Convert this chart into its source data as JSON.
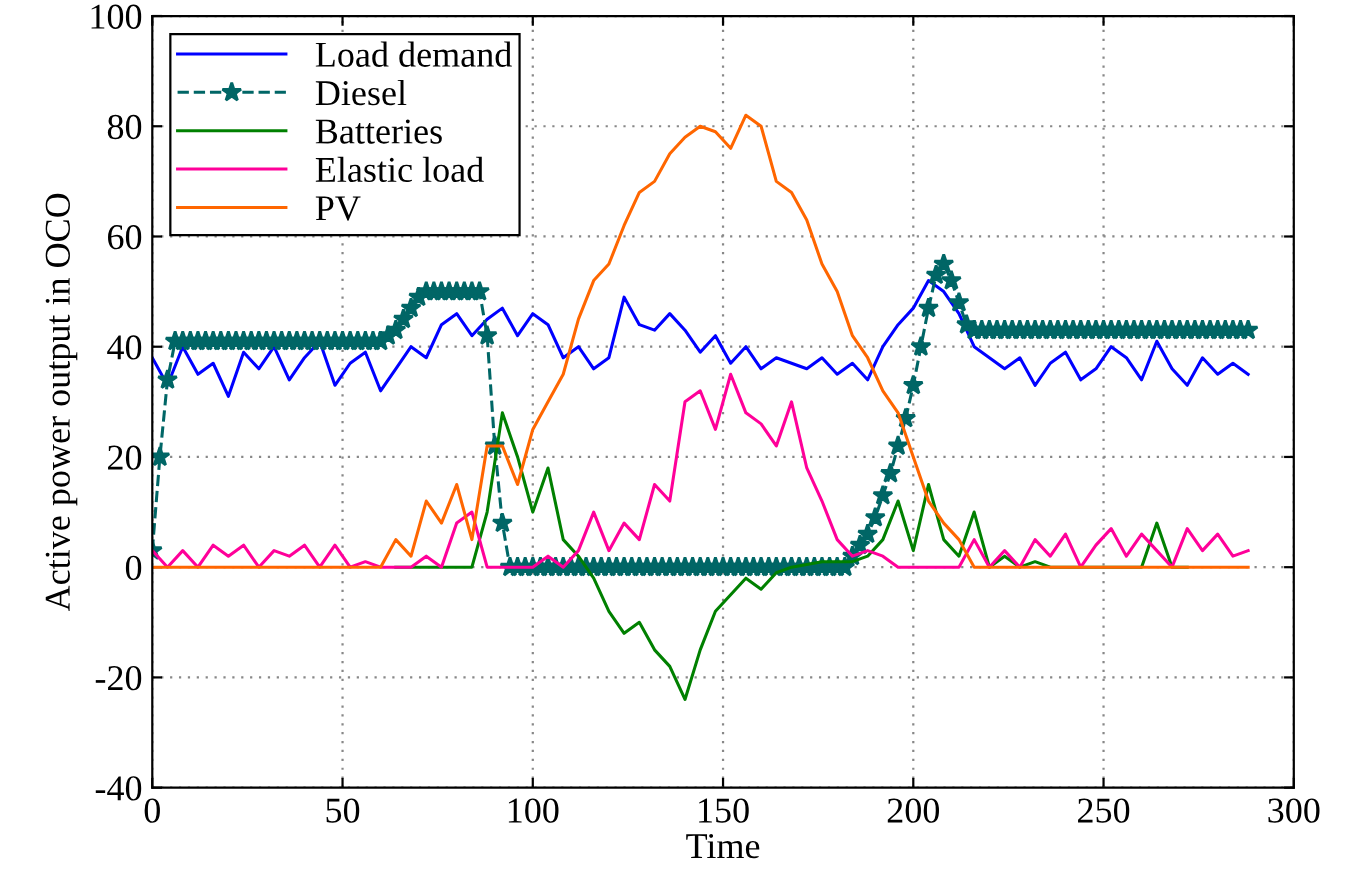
{
  "chart_data": {
    "type": "line",
    "xlabel": "Time",
    "ylabel": "Active power output in OCO",
    "x": [
      0,
      4,
      8,
      12,
      16,
      20,
      24,
      28,
      32,
      36,
      40,
      44,
      48,
      52,
      56,
      60,
      64,
      68,
      72,
      76,
      80,
      84,
      88,
      92,
      96,
      100,
      104,
      108,
      112,
      116,
      120,
      124,
      128,
      132,
      136,
      140,
      144,
      148,
      152,
      156,
      160,
      164,
      168,
      172,
      176,
      180,
      184,
      188,
      192,
      196,
      200,
      204,
      208,
      212,
      216,
      220,
      224,
      228,
      232,
      236,
      240,
      244,
      248,
      252,
      256,
      260,
      264,
      268,
      272,
      276,
      280,
      284,
      288
    ],
    "xlim": [
      0,
      300
    ],
    "xticks": [
      0,
      50,
      100,
      150,
      200,
      250,
      300
    ],
    "ylim": [
      -40,
      100
    ],
    "yticks": [
      -40,
      -20,
      0,
      20,
      40,
      60,
      80,
      100
    ],
    "grid": true,
    "legend": "top left",
    "series": [
      {
        "name": "Load demand",
        "color": "#0000ff",
        "line_style": "solid",
        "marker": "none",
        "values": [
          38,
          33,
          40,
          35,
          37,
          31,
          39,
          36,
          40,
          34,
          38,
          41,
          33,
          37,
          39,
          32,
          36,
          40,
          38,
          44,
          46,
          42,
          45,
          47,
          42,
          46,
          44,
          38,
          40,
          36,
          38,
          49,
          44,
          43,
          46,
          43,
          39,
          42,
          37,
          40,
          36,
          38,
          37,
          36,
          38,
          35,
          37,
          34,
          40,
          44,
          47,
          52,
          50,
          46,
          40,
          38,
          36,
          38,
          33,
          37,
          39,
          34,
          36,
          40,
          38,
          34,
          41,
          36,
          33,
          38,
          35,
          37,
          35
        ]
      },
      {
        "name": "Diesel",
        "color": "#006666",
        "line_style": "dashed",
        "marker": "star",
        "x": [
          0,
          2,
          4,
          6,
          8,
          10,
          12,
          14,
          16,
          18,
          20,
          22,
          24,
          26,
          28,
          30,
          32,
          34,
          36,
          38,
          40,
          42,
          44,
          46,
          48,
          50,
          52,
          54,
          56,
          58,
          60,
          62,
          64,
          66,
          68,
          70,
          72,
          74,
          76,
          78,
          80,
          82,
          84,
          86,
          88,
          90,
          92,
          94,
          96,
          98,
          100,
          102,
          104,
          106,
          108,
          110,
          112,
          114,
          116,
          118,
          120,
          122,
          124,
          126,
          128,
          130,
          132,
          134,
          136,
          138,
          140,
          142,
          144,
          146,
          148,
          150,
          152,
          154,
          156,
          158,
          160,
          162,
          164,
          166,
          168,
          170,
          172,
          174,
          176,
          178,
          180,
          182,
          184,
          186,
          188,
          190,
          192,
          194,
          196,
          198,
          200,
          202,
          204,
          206,
          208,
          210,
          212,
          214,
          216,
          218,
          220,
          222,
          224,
          226,
          228,
          230,
          232,
          234,
          236,
          238,
          240,
          242,
          244,
          246,
          248,
          250,
          252,
          254,
          256,
          258,
          260,
          262,
          264,
          266,
          268,
          270,
          272,
          274,
          276,
          278,
          280,
          282,
          284,
          286,
          288
        ],
        "values": [
          3,
          20,
          34,
          41,
          41,
          41,
          41,
          41,
          41,
          41,
          41,
          41,
          41,
          41,
          41,
          41,
          41,
          41,
          41,
          41,
          41,
          41,
          41,
          41,
          41,
          41,
          41,
          41,
          41,
          41,
          41,
          42,
          43,
          45,
          47,
          49,
          50,
          50,
          50,
          50,
          50,
          50,
          50,
          50,
          42,
          22,
          8,
          0,
          0,
          0,
          0,
          0,
          0,
          0,
          0,
          0,
          0,
          0,
          0,
          0,
          0,
          0,
          0,
          0,
          0,
          0,
          0,
          0,
          0,
          0,
          0,
          0,
          0,
          0,
          0,
          0,
          0,
          0,
          0,
          0,
          0,
          0,
          0,
          0,
          0,
          0,
          0,
          0,
          0,
          0,
          0,
          0,
          2,
          4,
          6,
          9,
          13,
          17,
          22,
          27,
          33,
          40,
          47,
          53,
          55,
          52,
          48,
          44,
          43,
          43,
          43,
          43,
          43,
          43,
          43,
          43,
          43,
          43,
          43,
          43,
          43,
          43,
          43,
          43,
          43,
          43,
          43,
          43,
          43,
          43,
          43,
          43,
          43,
          43,
          43,
          43,
          43,
          43,
          43,
          43,
          43,
          43,
          43,
          43,
          43
        ]
      },
      {
        "name": "Batteries",
        "color": "#008000",
        "line_style": "solid",
        "marker": "none",
        "values": [
          null,
          null,
          null,
          null,
          null,
          null,
          null,
          null,
          null,
          null,
          null,
          null,
          null,
          null,
          null,
          null,
          0,
          0,
          0,
          0,
          0,
          0,
          10,
          28,
          20,
          10,
          18,
          5,
          2,
          -2,
          -8,
          -12,
          -10,
          -15,
          -18,
          -24,
          -15,
          -8,
          -5,
          -2,
          -4,
          -1,
          0,
          0.5,
          1,
          1,
          1,
          2,
          5,
          12,
          3,
          15,
          5,
          2,
          10,
          0,
          2,
          0,
          1,
          0,
          0,
          0,
          0,
          0,
          0,
          0,
          8,
          0,
          0,
          null,
          null,
          null,
          null
        ]
      },
      {
        "name": "Elastic load",
        "color": "#ff0099",
        "line_style": "solid",
        "marker": "none",
        "values": [
          3,
          0,
          3,
          0,
          4,
          2,
          4,
          0,
          3,
          2,
          4,
          0,
          4,
          0,
          1,
          0,
          0,
          0,
          2,
          0,
          8,
          10,
          0,
          0,
          0,
          0,
          2,
          0,
          3,
          10,
          3,
          8,
          5,
          15,
          12,
          30,
          32,
          25,
          35,
          28,
          26,
          22,
          30,
          18,
          12,
          5,
          2,
          3,
          2,
          0,
          0,
          0,
          0,
          0,
          5,
          0,
          3,
          0,
          5,
          2,
          6,
          0,
          4,
          7,
          2,
          6,
          3,
          0,
          7,
          3,
          6,
          2,
          3
        ]
      },
      {
        "name": "PV",
        "color": "#ff6600",
        "line_style": "solid",
        "marker": "none",
        "values": [
          0,
          0,
          0,
          0,
          0,
          0,
          0,
          0,
          0,
          0,
          0,
          0,
          0,
          0,
          0,
          0,
          5,
          2,
          12,
          8,
          15,
          5,
          22,
          22,
          15,
          25,
          30,
          35,
          45,
          52,
          55,
          62,
          68,
          70,
          75,
          78,
          80,
          79,
          76,
          82,
          80,
          70,
          68,
          63,
          55,
          50,
          42,
          38,
          32,
          28,
          20,
          12,
          8,
          5,
          0,
          0,
          0,
          0,
          0,
          0,
          0,
          0,
          0,
          0,
          0,
          0,
          0,
          0,
          0,
          0,
          0,
          0,
          0
        ]
      }
    ]
  }
}
